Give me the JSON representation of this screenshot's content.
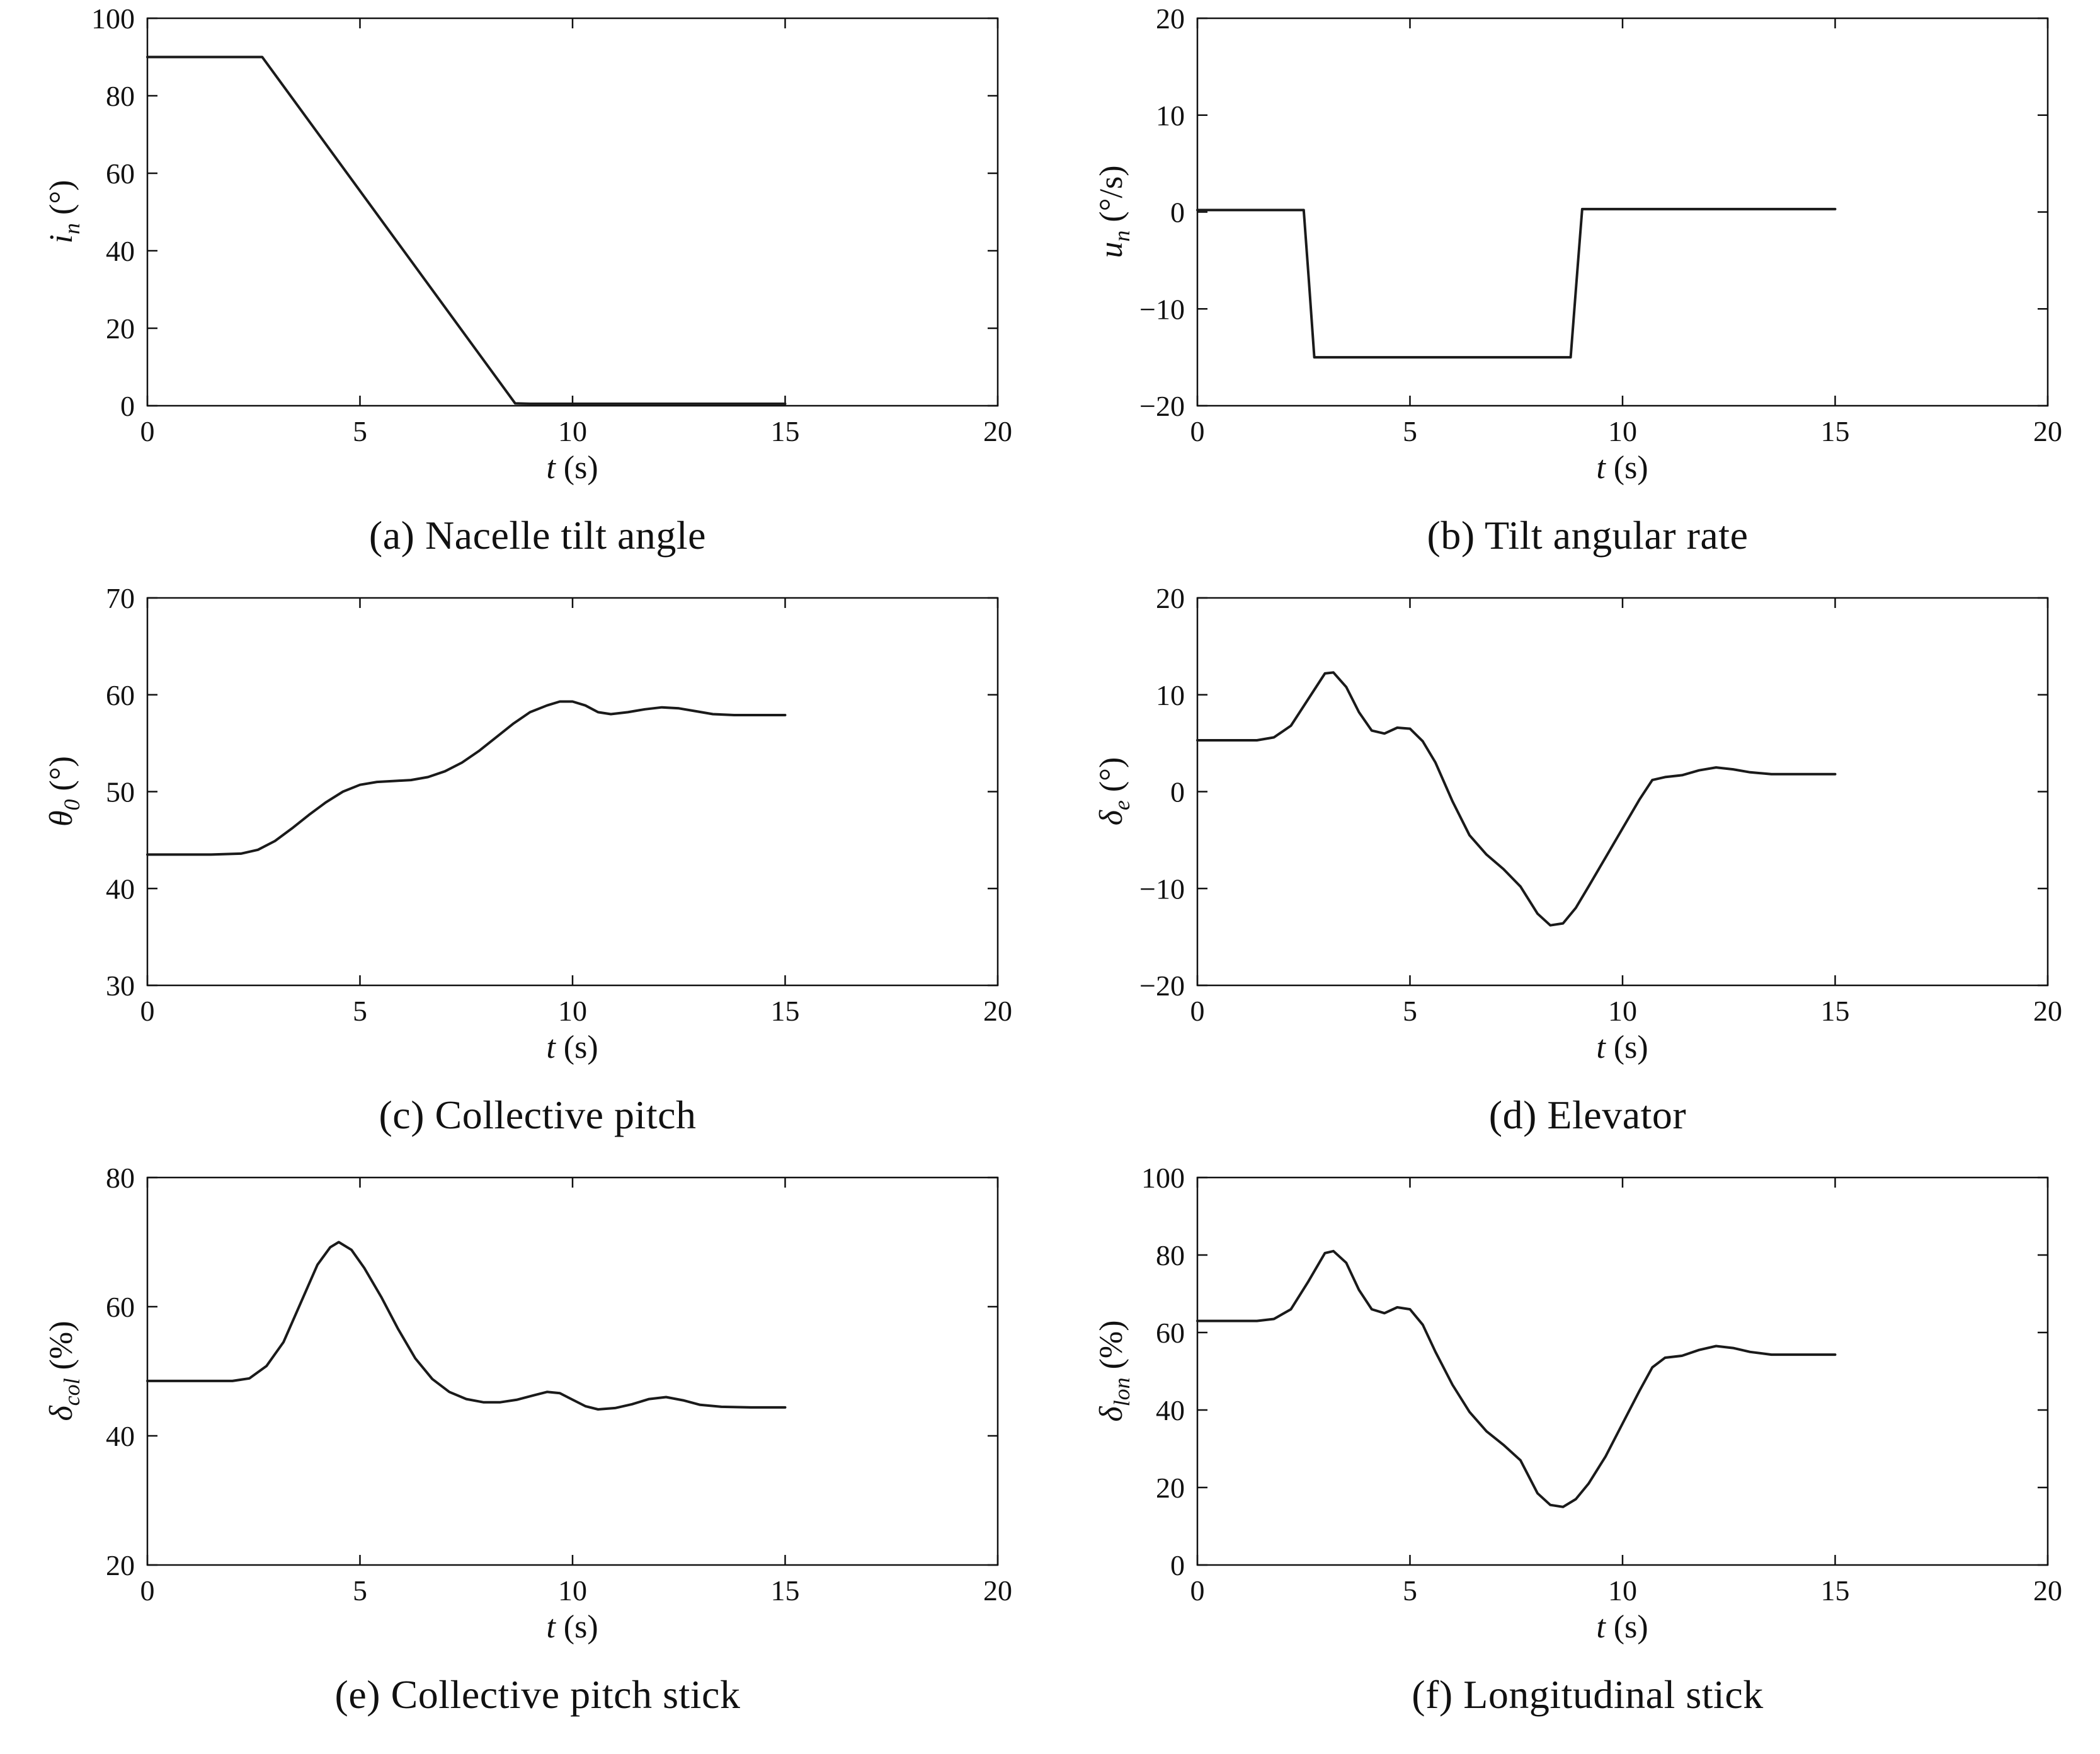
{
  "page": {
    "background": "#ffffff",
    "line_color": "#1a1a1a",
    "axis_color": "#111111"
  },
  "chart_data": [
    {
      "id": "a",
      "type": "line",
      "caption": "(a) Nacelle tilt angle",
      "xlabel_var": "t",
      "xlabel_unit": " (s)",
      "ylabel_var": "i",
      "ylabel_sub": "n",
      "ylabel_unit": " (°)",
      "xlim": [
        0,
        20
      ],
      "ylim": [
        0,
        100
      ],
      "xticks": [
        0,
        5,
        10,
        15,
        20
      ],
      "yticks": [
        0,
        20,
        40,
        60,
        80,
        100
      ],
      "grid": false,
      "legend": null,
      "x": [
        0,
        2.7,
        8.65,
        9.0,
        15.0
      ],
      "y": [
        90,
        90,
        0.6,
        0.5,
        0.5
      ]
    },
    {
      "id": "b",
      "type": "line",
      "caption": "(b) Tilt angular rate",
      "xlabel_var": "t",
      "xlabel_unit": " (s)",
      "ylabel_var": "u",
      "ylabel_sub": "n",
      "ylabel_unit": " (°/s)",
      "xlim": [
        0,
        20
      ],
      "ylim": [
        -20,
        20
      ],
      "xticks": [
        0,
        5,
        10,
        15,
        20
      ],
      "yticks": [
        -20,
        -10,
        0,
        10,
        20
      ],
      "grid": false,
      "legend": null,
      "x": [
        0,
        2.5,
        2.62,
        2.75,
        8.78,
        8.92,
        9.05,
        15.0
      ],
      "y": [
        0.2,
        0.2,
        -7,
        -15,
        -15,
        -7,
        0.3,
        0.3
      ]
    },
    {
      "id": "c",
      "type": "line",
      "caption": "(c) Collective pitch",
      "xlabel_var": "t",
      "xlabel_unit": " (s)",
      "ylabel_var": "θ",
      "ylabel_sub": "0",
      "ylabel_unit": " (°)",
      "xlim": [
        0,
        20
      ],
      "ylim": [
        30,
        70
      ],
      "xticks": [
        0,
        5,
        10,
        15,
        20
      ],
      "yticks": [
        30,
        40,
        50,
        60,
        70
      ],
      "grid": false,
      "legend": null,
      "x": [
        0,
        1.5,
        2.2,
        2.6,
        3.0,
        3.4,
        3.8,
        4.2,
        4.6,
        5.0,
        5.4,
        5.8,
        6.2,
        6.6,
        7.0,
        7.4,
        7.8,
        8.2,
        8.6,
        9.0,
        9.4,
        9.7,
        10.0,
        10.3,
        10.6,
        10.9,
        11.3,
        11.7,
        12.1,
        12.5,
        12.9,
        13.3,
        13.8,
        14.4,
        15.0
      ],
      "y": [
        43.5,
        43.5,
        43.6,
        44.0,
        44.9,
        46.2,
        47.6,
        48.9,
        50.0,
        50.7,
        51.0,
        51.1,
        51.2,
        51.5,
        52.1,
        53.0,
        54.2,
        55.6,
        57.0,
        58.2,
        58.9,
        59.3,
        59.3,
        58.9,
        58.2,
        58.0,
        58.2,
        58.5,
        58.7,
        58.6,
        58.3,
        58.0,
        57.9,
        57.9,
        57.9
      ]
    },
    {
      "id": "d",
      "type": "line",
      "caption": "(d) Elevator",
      "xlabel_var": "t",
      "xlabel_unit": " (s)",
      "ylabel_var": "δ",
      "ylabel_sub": "e",
      "ylabel_unit": " (°)",
      "xlim": [
        0,
        20
      ],
      "ylim": [
        -20,
        20
      ],
      "xticks": [
        0,
        5,
        10,
        15,
        20
      ],
      "yticks": [
        -20,
        -10,
        0,
        10,
        20
      ],
      "grid": false,
      "legend": null,
      "x": [
        0,
        1.4,
        1.8,
        2.2,
        2.6,
        3.0,
        3.2,
        3.5,
        3.8,
        4.1,
        4.4,
        4.7,
        5.0,
        5.3,
        5.6,
        6.0,
        6.4,
        6.8,
        7.2,
        7.6,
        8.0,
        8.3,
        8.6,
        8.9,
        9.2,
        9.6,
        10.0,
        10.4,
        10.7,
        11.0,
        11.4,
        11.8,
        12.2,
        12.6,
        13.0,
        13.5,
        14.2,
        15.0
      ],
      "y": [
        5.3,
        5.3,
        5.6,
        6.8,
        9.5,
        12.2,
        12.3,
        10.8,
        8.2,
        6.3,
        6.0,
        6.6,
        6.5,
        5.2,
        3.0,
        -1.0,
        -4.5,
        -6.5,
        -8.0,
        -9.8,
        -12.6,
        -13.8,
        -13.6,
        -12.0,
        -9.8,
        -6.8,
        -3.8,
        -0.8,
        1.2,
        1.5,
        1.7,
        2.2,
        2.5,
        2.3,
        2.0,
        1.8,
        1.8,
        1.8
      ]
    },
    {
      "id": "e",
      "type": "line",
      "caption": "(e) Collective pitch stick",
      "xlabel_var": "t",
      "xlabel_unit": " (s)",
      "ylabel_var": "δ",
      "ylabel_sub": "col",
      "ylabel_unit": " (%)",
      "xlim": [
        0,
        20
      ],
      "ylim": [
        20,
        80
      ],
      "xticks": [
        0,
        5,
        10,
        15,
        20
      ],
      "yticks": [
        20,
        40,
        60,
        80
      ],
      "grid": false,
      "legend": null,
      "x": [
        0,
        2.0,
        2.4,
        2.8,
        3.2,
        3.6,
        4.0,
        4.3,
        4.5,
        4.8,
        5.1,
        5.5,
        5.9,
        6.3,
        6.7,
        7.1,
        7.5,
        7.9,
        8.3,
        8.7,
        9.1,
        9.4,
        9.7,
        10.0,
        10.3,
        10.6,
        11.0,
        11.4,
        11.8,
        12.2,
        12.6,
        13.0,
        13.5,
        14.2,
        15.0
      ],
      "y": [
        48.5,
        48.5,
        48.9,
        50.8,
        54.5,
        60.5,
        66.5,
        69.2,
        70.0,
        68.8,
        66.0,
        61.5,
        56.5,
        52.0,
        48.8,
        46.8,
        45.7,
        45.2,
        45.2,
        45.6,
        46.3,
        46.8,
        46.6,
        45.6,
        44.6,
        44.1,
        44.3,
        44.9,
        45.7,
        46.0,
        45.5,
        44.8,
        44.5,
        44.4,
        44.4
      ]
    },
    {
      "id": "f",
      "type": "line",
      "caption": "(f) Longitudinal stick",
      "xlabel_var": "t",
      "xlabel_unit": " (s)",
      "ylabel_var": "δ",
      "ylabel_sub": "lon",
      "ylabel_unit": " (%)",
      "xlim": [
        0,
        20
      ],
      "ylim": [
        0,
        100
      ],
      "xticks": [
        0,
        5,
        10,
        15,
        20
      ],
      "yticks": [
        0,
        20,
        40,
        60,
        80,
        100
      ],
      "grid": false,
      "legend": null,
      "x": [
        0,
        1.4,
        1.8,
        2.2,
        2.6,
        3.0,
        3.2,
        3.5,
        3.8,
        4.1,
        4.4,
        4.7,
        5.0,
        5.3,
        5.6,
        6.0,
        6.4,
        6.8,
        7.2,
        7.6,
        8.0,
        8.3,
        8.6,
        8.9,
        9.2,
        9.6,
        10.0,
        10.4,
        10.7,
        11.0,
        11.4,
        11.8,
        12.2,
        12.6,
        13.0,
        13.5,
        14.2,
        15.0
      ],
      "y": [
        63,
        63,
        63.5,
        66,
        73,
        80.5,
        81,
        78,
        71,
        66,
        65,
        66.5,
        66,
        62,
        55,
        46.5,
        39.5,
        34.5,
        31,
        27,
        18.5,
        15.5,
        15,
        17,
        21,
        28,
        36.5,
        45,
        51,
        53.5,
        54,
        55.5,
        56.5,
        56,
        55,
        54.3,
        54.3,
        54.3
      ]
    }
  ]
}
